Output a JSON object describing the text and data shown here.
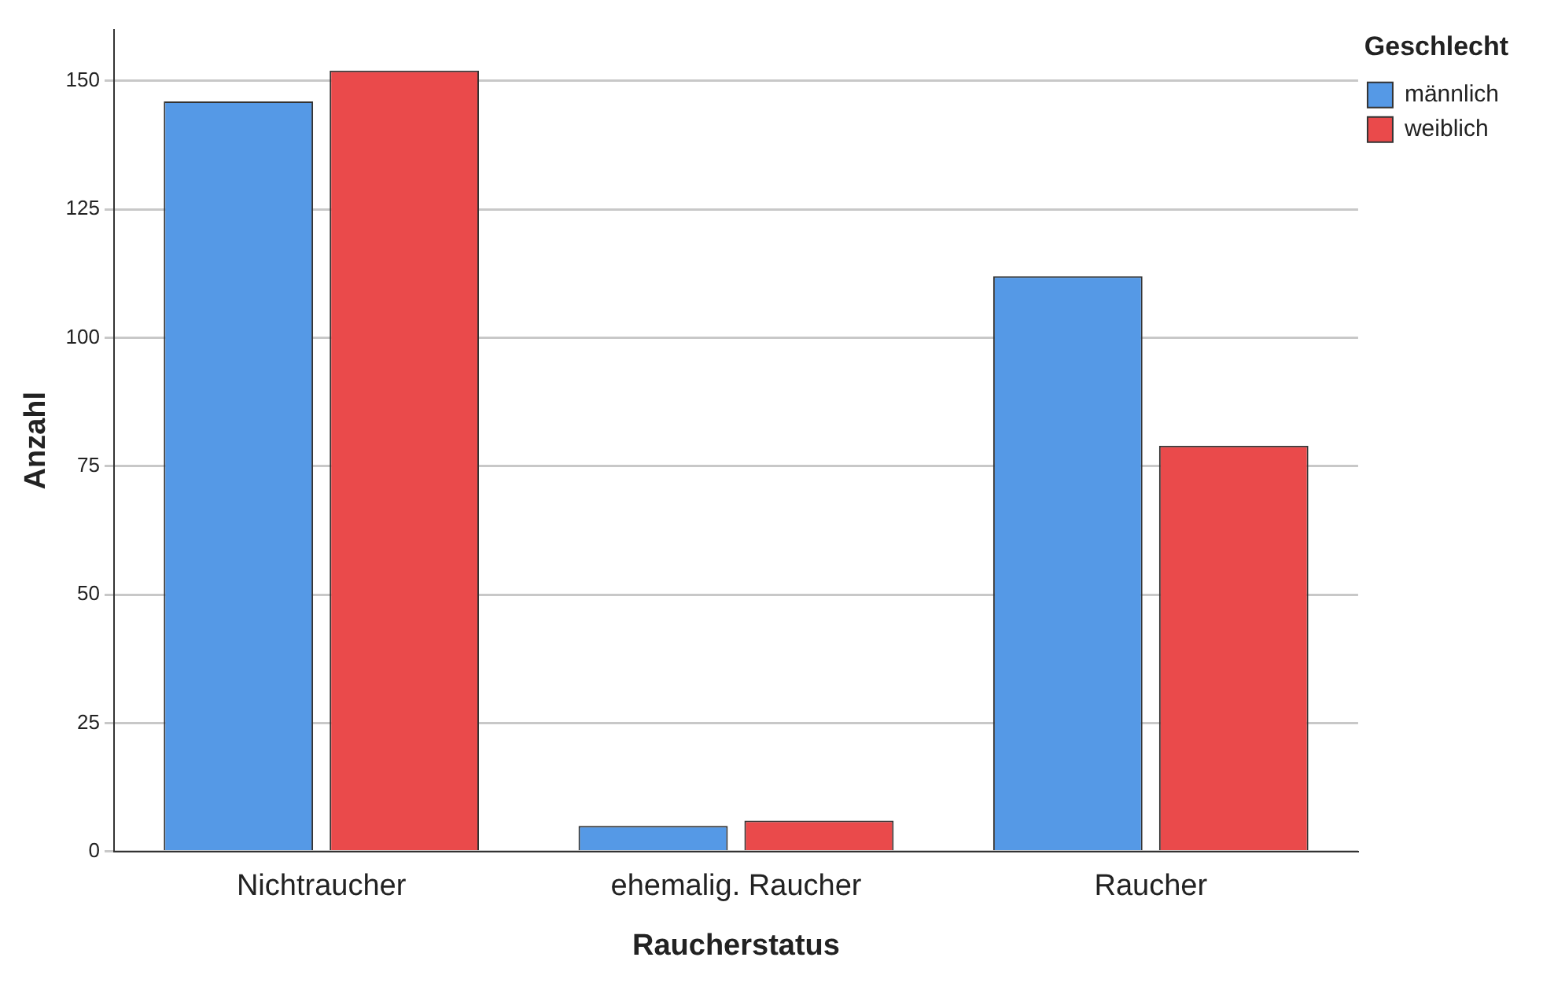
{
  "chart_data": {
    "type": "bar",
    "xlabel": "Raucherstatus",
    "ylabel": "Anzahl",
    "legend_title": "Geschlecht",
    "categories": [
      "Nichtraucher",
      "ehemalig. Raucher",
      "Raucher"
    ],
    "series": [
      {
        "name": "männlich",
        "color": "#5599e6",
        "values": [
          146,
          5,
          112
        ]
      },
      {
        "name": "weiblich",
        "color": "#ea4a4b",
        "values": [
          152,
          6,
          79
        ]
      }
    ],
    "ylim": [
      0,
      160
    ],
    "yticks": [
      0,
      25,
      50,
      75,
      100,
      125,
      150
    ],
    "grid": "y",
    "legend": "top right"
  }
}
